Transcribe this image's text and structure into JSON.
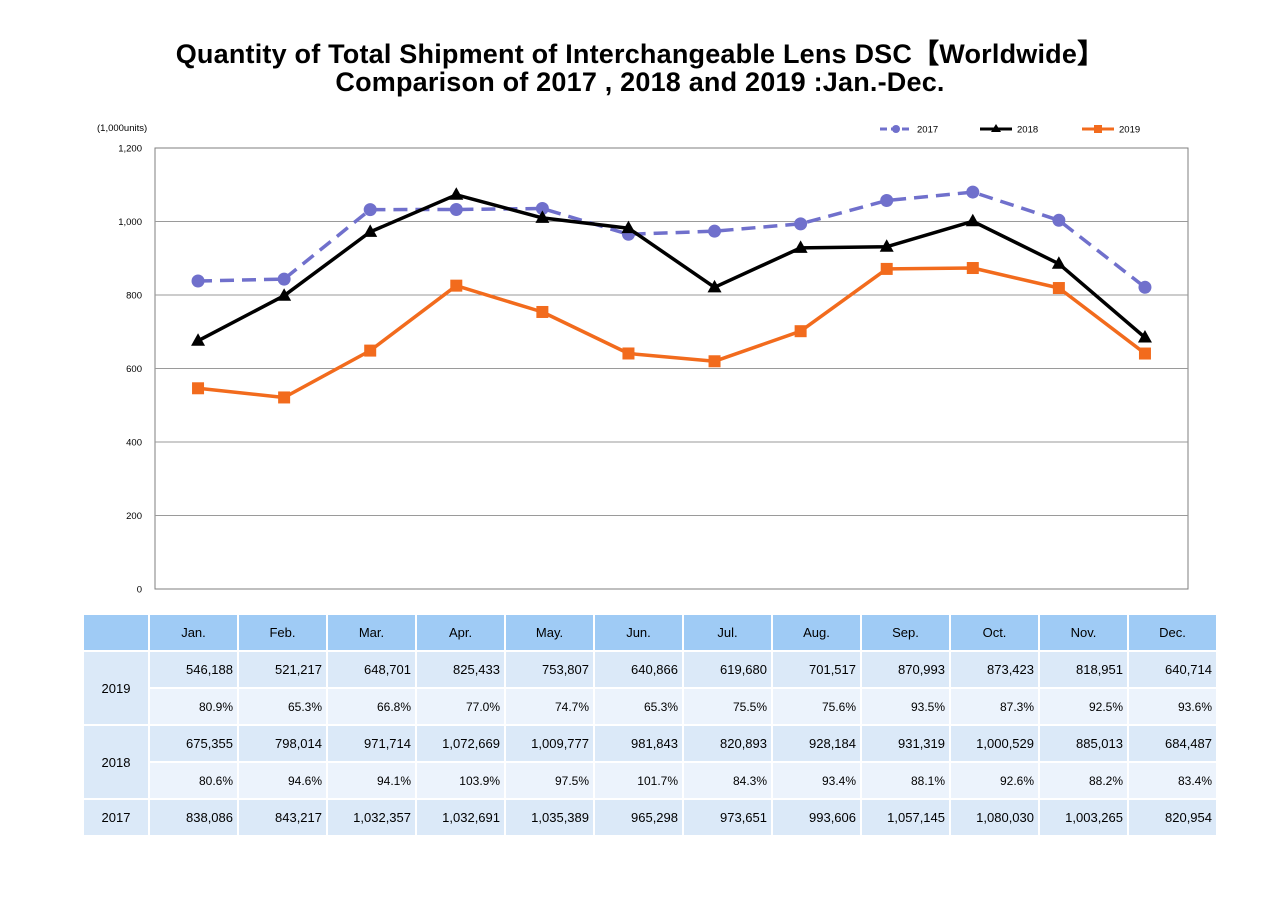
{
  "title_line1": "Quantity of Total Shipment of Interchangeable Lens DSC【Worldwide】",
  "title_line2": "Comparison of 2017 , 2018 and 2019 :Jan.-Dec.",
  "chart_data": {
    "type": "line",
    "unit_label": "(1,000units)",
    "categories": [
      "Jan.",
      "Feb.",
      "Mar.",
      "Apr.",
      "May.",
      "Jun.",
      "Jul.",
      "Aug.",
      "Sep.",
      "Oct.",
      "Nov.",
      "Dec."
    ],
    "ylim": [
      0,
      1200
    ],
    "yticks": [
      0,
      200,
      400,
      600,
      800,
      1000,
      1200
    ],
    "ytick_labels": [
      "0",
      "200",
      "400",
      "600",
      "800",
      "1,000",
      "1,200"
    ],
    "grid": true,
    "legend_position": "top-right",
    "series": [
      {
        "name": "2017",
        "color": "#7070cc",
        "style": "dashed",
        "marker": "circle",
        "values": [
          838.086,
          843.217,
          1032.357,
          1032.691,
          1035.389,
          965.298,
          973.651,
          993.606,
          1057.145,
          1080.03,
          1003.265,
          820.954
        ]
      },
      {
        "name": "2018",
        "color": "#000000",
        "style": "solid",
        "marker": "triangle",
        "values": [
          675.355,
          798.014,
          971.714,
          1072.669,
          1009.777,
          981.843,
          820.893,
          928.184,
          931.319,
          1000.529,
          885.013,
          684.487
        ]
      },
      {
        "name": "2019",
        "color": "#f26b1d",
        "style": "solid",
        "marker": "square",
        "values": [
          546.188,
          521.217,
          648.701,
          825.433,
          753.807,
          640.866,
          619.68,
          701.517,
          870.993,
          873.423,
          818.951,
          640.714
        ]
      }
    ]
  },
  "table": {
    "months": [
      "Jan.",
      "Feb.",
      "Mar.",
      "Apr.",
      "May.",
      "Jun.",
      "Jul.",
      "Aug.",
      "Sep.",
      "Oct.",
      "Nov.",
      "Dec."
    ],
    "rows": [
      {
        "year": "2019",
        "units": [
          "546,188",
          "521,217",
          "648,701",
          "825,433",
          "753,807",
          "640,866",
          "619,680",
          "701,517",
          "870,993",
          "873,423",
          "818,951",
          "640,714"
        ],
        "pct": [
          "80.9%",
          "65.3%",
          "66.8%",
          "77.0%",
          "74.7%",
          "65.3%",
          "75.5%",
          "75.6%",
          "93.5%",
          "87.3%",
          "92.5%",
          "93.6%"
        ]
      },
      {
        "year": "2018",
        "units": [
          "675,355",
          "798,014",
          "971,714",
          "1,072,669",
          "1,009,777",
          "981,843",
          "820,893",
          "928,184",
          "931,319",
          "1,000,529",
          "885,013",
          "684,487"
        ],
        "pct": [
          "80.6%",
          "94.6%",
          "94.1%",
          "103.9%",
          "97.5%",
          "101.7%",
          "84.3%",
          "93.4%",
          "88.1%",
          "92.6%",
          "88.2%",
          "83.4%"
        ]
      },
      {
        "year": "2017",
        "units": [
          "838,086",
          "843,217",
          "1,032,357",
          "1,032,691",
          "1,035,389",
          "965,298",
          "973,651",
          "993,606",
          "1,057,145",
          "1,080,030",
          "1,003,265",
          "820,954"
        ]
      }
    ]
  }
}
